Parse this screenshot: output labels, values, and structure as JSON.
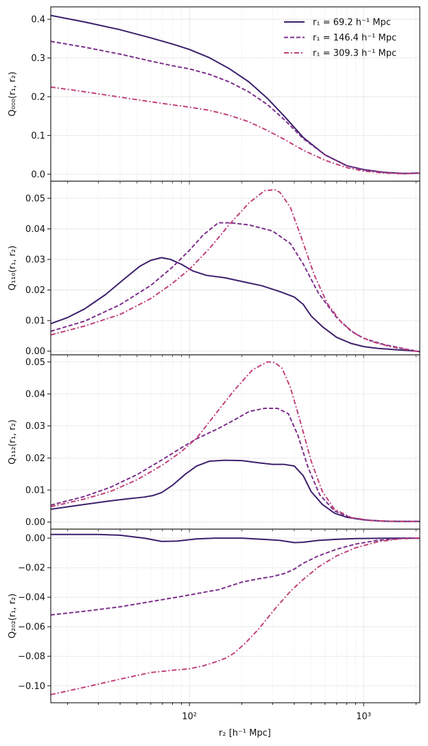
{
  "figure": {
    "xlabel": "r₂ [h⁻¹ Mpc]",
    "x_tick_labels": [
      "10²",
      "10³"
    ]
  },
  "chart_data": [
    {
      "type": "line",
      "ylabel": "Q₀₀₀(r₁, r₂)",
      "xscale": "log",
      "xlim": [
        16,
        2100
      ],
      "ylim": [
        -0.018,
        0.432
      ],
      "yticks": [
        0.0,
        0.1,
        0.2,
        0.3,
        0.4
      ],
      "ytick_labels": [
        "0.0",
        "0.1",
        "0.2",
        "0.3",
        "0.4"
      ],
      "grid": true,
      "legend": "top-right",
      "series": [
        {
          "name": "r₁ = 69.2 h⁻¹ Mpc",
          "color": "#3b1f6b",
          "dash": "solid",
          "x": [
            16,
            25,
            40,
            60,
            80,
            100,
            130,
            170,
            220,
            280,
            350,
            450,
            600,
            800,
            1000,
            1300,
            1700,
            2100
          ],
          "y": [
            0.41,
            0.393,
            0.373,
            0.352,
            0.336,
            0.322,
            0.301,
            0.272,
            0.238,
            0.196,
            0.15,
            0.095,
            0.05,
            0.022,
            0.012,
            0.005,
            0.002,
            0.003
          ]
        },
        {
          "name": "r₁ = 146.4 h⁻¹ Mpc",
          "color": "#7b2e8a",
          "dash": "dashed",
          "x": [
            16,
            25,
            40,
            60,
            80,
            100,
            130,
            170,
            220,
            280,
            350,
            450,
            600,
            800,
            1000,
            1300,
            1700,
            2100
          ],
          "y": [
            0.343,
            0.328,
            0.31,
            0.292,
            0.28,
            0.272,
            0.258,
            0.238,
            0.212,
            0.18,
            0.141,
            0.092,
            0.05,
            0.022,
            0.011,
            0.005,
            0.002,
            0.003
          ]
        },
        {
          "name": "r₁ = 309.3 h⁻¹ Mpc",
          "color": "#c0407a",
          "dash": "dashdot",
          "x": [
            16,
            25,
            40,
            60,
            80,
            100,
            130,
            170,
            220,
            280,
            350,
            450,
            600,
            800,
            1000,
            1300,
            1700,
            2100
          ],
          "y": [
            0.225,
            0.213,
            0.199,
            0.187,
            0.179,
            0.173,
            0.165,
            0.152,
            0.135,
            0.113,
            0.09,
            0.062,
            0.036,
            0.017,
            0.008,
            0.003,
            0.001,
            0.003
          ]
        }
      ]
    },
    {
      "type": "line",
      "ylabel": "Q₁₁₀(r₁, r₂)",
      "xscale": "log",
      "xlim": [
        16,
        2100
      ],
      "ylim": [
        -0.0012,
        0.0556
      ],
      "yticks": [
        0.0,
        0.01,
        0.02,
        0.03,
        0.04,
        0.05
      ],
      "ytick_labels": [
        "0.00",
        "0.01",
        "0.02",
        "0.03",
        "0.04",
        "0.05"
      ],
      "grid": true,
      "series": [
        {
          "name": "r₁ = 69.2 h⁻¹ Mpc",
          "color": "#3b1f6b",
          "dash": "solid",
          "x": [
            16,
            20,
            25,
            33,
            42,
            52,
            60,
            69.2,
            78,
            90,
            105,
            125,
            160,
            200,
            260,
            330,
            400,
            450,
            500,
            580,
            700,
            850,
            1000,
            1200,
            1500,
            1800,
            2100
          ],
          "y": [
            0.009,
            0.011,
            0.0138,
            0.0185,
            0.0235,
            0.0278,
            0.0297,
            0.0306,
            0.03,
            0.0284,
            0.0262,
            0.0248,
            0.024,
            0.0228,
            0.0214,
            0.0195,
            0.0177,
            0.0153,
            0.0115,
            0.008,
            0.0045,
            0.0025,
            0.0015,
            0.0009,
            0.0005,
            0.0002,
            -0.0001
          ]
        },
        {
          "name": "r₁ = 146.4 h⁻¹ Mpc",
          "color": "#7b2e8a",
          "dash": "dashed",
          "x": [
            16,
            25,
            40,
            60,
            80,
            100,
            120,
            146.4,
            170,
            220,
            300,
            380,
            450,
            550,
            700,
            850,
            1000,
            1300,
            1700,
            2100
          ],
          "y": [
            0.0065,
            0.0098,
            0.0152,
            0.0215,
            0.0275,
            0.033,
            0.038,
            0.042,
            0.042,
            0.0413,
            0.0393,
            0.0352,
            0.0285,
            0.019,
            0.011,
            0.0065,
            0.0042,
            0.0022,
            0.0008,
            -0.0002
          ]
        },
        {
          "name": "r₁ = 309.3 h⁻¹ Mpc",
          "color": "#c0407a",
          "dash": "dashdot",
          "x": [
            16,
            25,
            40,
            60,
            80,
            100,
            130,
            170,
            220,
            270,
            309.3,
            330,
            380,
            440,
            520,
            620,
            750,
            900,
            1100,
            1400,
            1800,
            2100
          ],
          "y": [
            0.0053,
            0.0082,
            0.012,
            0.0172,
            0.0222,
            0.0268,
            0.0335,
            0.0415,
            0.0485,
            0.0525,
            0.0528,
            0.052,
            0.047,
            0.037,
            0.025,
            0.0155,
            0.0092,
            0.0056,
            0.0032,
            0.0016,
            0.0004,
            -0.0002
          ]
        }
      ]
    },
    {
      "type": "line",
      "ylabel": "Q₁₁₂(r₁, r₂)",
      "xscale": "log",
      "xlim": [
        16,
        2100
      ],
      "ylim": [
        -0.0022,
        0.0522
      ],
      "yticks": [
        0.0,
        0.01,
        0.02,
        0.03,
        0.04,
        0.05
      ],
      "ytick_labels": [
        "0.00",
        "0.01",
        "0.02",
        "0.03",
        "0.04",
        "0.05"
      ],
      "grid": true,
      "series": [
        {
          "name": "r₁ = 69.2 h⁻¹ Mpc",
          "color": "#3b1f6b",
          "dash": "solid",
          "x": [
            16,
            25,
            35,
            45,
            55,
            62,
            69.2,
            80,
            95,
            110,
            130,
            160,
            200,
            250,
            300,
            350,
            400,
            450,
            500,
            580,
            680,
            800,
            1000,
            1300,
            1700,
            2100
          ],
          "y": [
            0.004,
            0.0055,
            0.0066,
            0.0073,
            0.0078,
            0.0083,
            0.0092,
            0.0115,
            0.015,
            0.0175,
            0.019,
            0.0193,
            0.0192,
            0.0185,
            0.018,
            0.018,
            0.0175,
            0.0145,
            0.0095,
            0.0055,
            0.0028,
            0.0015,
            0.0007,
            0.0003,
            0.0002,
            0.0002
          ]
        },
        {
          "name": "r₁ = 146.4 h⁻¹ Mpc",
          "color": "#7b2e8a",
          "dash": "dashed",
          "x": [
            16,
            25,
            35,
            50,
            70,
            90,
            110,
            146.4,
            180,
            220,
            270,
            320,
            370,
            420,
            480,
            560,
            680,
            850,
            1100,
            1500,
            2100
          ],
          "y": [
            0.0053,
            0.008,
            0.0108,
            0.0148,
            0.0195,
            0.0232,
            0.026,
            0.0292,
            0.0318,
            0.0345,
            0.0355,
            0.0355,
            0.0338,
            0.027,
            0.017,
            0.0085,
            0.0035,
            0.0013,
            0.0005,
            0.0002,
            0.0002
          ]
        },
        {
          "name": "r₁ = 309.3 h⁻¹ Mpc",
          "color": "#c0407a",
          "dash": "dashdot",
          "x": [
            16,
            25,
            35,
            50,
            70,
            90,
            110,
            140,
            180,
            230,
            280,
            309.3,
            340,
            380,
            430,
            500,
            580,
            680,
            850,
            1100,
            1500,
            2100
          ],
          "y": [
            0.0048,
            0.0072,
            0.0095,
            0.0132,
            0.0178,
            0.022,
            0.0262,
            0.0335,
            0.041,
            0.0475,
            0.05,
            0.0498,
            0.048,
            0.042,
            0.032,
            0.019,
            0.0095,
            0.004,
            0.0014,
            0.0005,
            0.0002,
            0.0002
          ]
        }
      ]
    },
    {
      "type": "line",
      "ylabel": "Q₂₀₂(r₁, r₂)",
      "xscale": "log",
      "xlim": [
        16,
        2100
      ],
      "ylim": [
        -0.1115,
        0.0061
      ],
      "yticks": [
        0.0,
        -0.02,
        -0.04,
        -0.06,
        -0.08,
        -0.1
      ],
      "ytick_labels": [
        "0.00",
        "−0.02",
        "−0.04",
        "−0.06",
        "−0.08",
        "−0.10"
      ],
      "grid": true,
      "series": [
        {
          "name": "r₁ = 69.2 h⁻¹ Mpc",
          "color": "#3b1f6b",
          "dash": "solid",
          "x": [
            16,
            20,
            30,
            40,
            55,
            69.2,
            85,
            110,
            140,
            200,
            280,
            330,
            400,
            450,
            550,
            700,
            900,
            1200,
            1600,
            2100
          ],
          "y": [
            0.0025,
            0.0025,
            0.0025,
            0.002,
            0.0,
            -0.0022,
            -0.002,
            -0.0005,
            0.0,
            0.0,
            -0.001,
            -0.0015,
            -0.003,
            -0.0028,
            -0.0015,
            -0.0008,
            -0.0003,
            -0.0001,
            0.0,
            0.0
          ]
        },
        {
          "name": "r₁ = 146.4 h⁻¹ Mpc",
          "color": "#7b2e8a",
          "dash": "dashed",
          "x": [
            16,
            25,
            40,
            60,
            80,
            100,
            130,
            146.4,
            170,
            200,
            250,
            300,
            350,
            400,
            450,
            550,
            700,
            900,
            1200,
            1600,
            2100
          ],
          "y": [
            -0.052,
            -0.0495,
            -0.0465,
            -0.043,
            -0.0405,
            -0.0385,
            -0.036,
            -0.035,
            -0.0325,
            -0.0298,
            -0.0275,
            -0.026,
            -0.024,
            -0.021,
            -0.017,
            -0.012,
            -0.0075,
            -0.004,
            -0.0015,
            -0.0003,
            0.0
          ]
        },
        {
          "name": "r₁ = 309.3 h⁻¹ Mpc",
          "color": "#c0407a",
          "dash": "dashdot",
          "x": [
            16,
            25,
            40,
            60,
            80,
            100,
            120,
            140,
            160,
            180,
            210,
            250,
            309.3,
            380,
            450,
            550,
            700,
            900,
            1200,
            1600,
            2100
          ],
          "y": [
            -0.106,
            -0.101,
            -0.0955,
            -0.091,
            -0.0895,
            -0.0885,
            -0.0865,
            -0.084,
            -0.0815,
            -0.078,
            -0.071,
            -0.0615,
            -0.048,
            -0.036,
            -0.028,
            -0.0195,
            -0.012,
            -0.0065,
            -0.0025,
            -0.0005,
            0.0
          ]
        }
      ]
    }
  ]
}
